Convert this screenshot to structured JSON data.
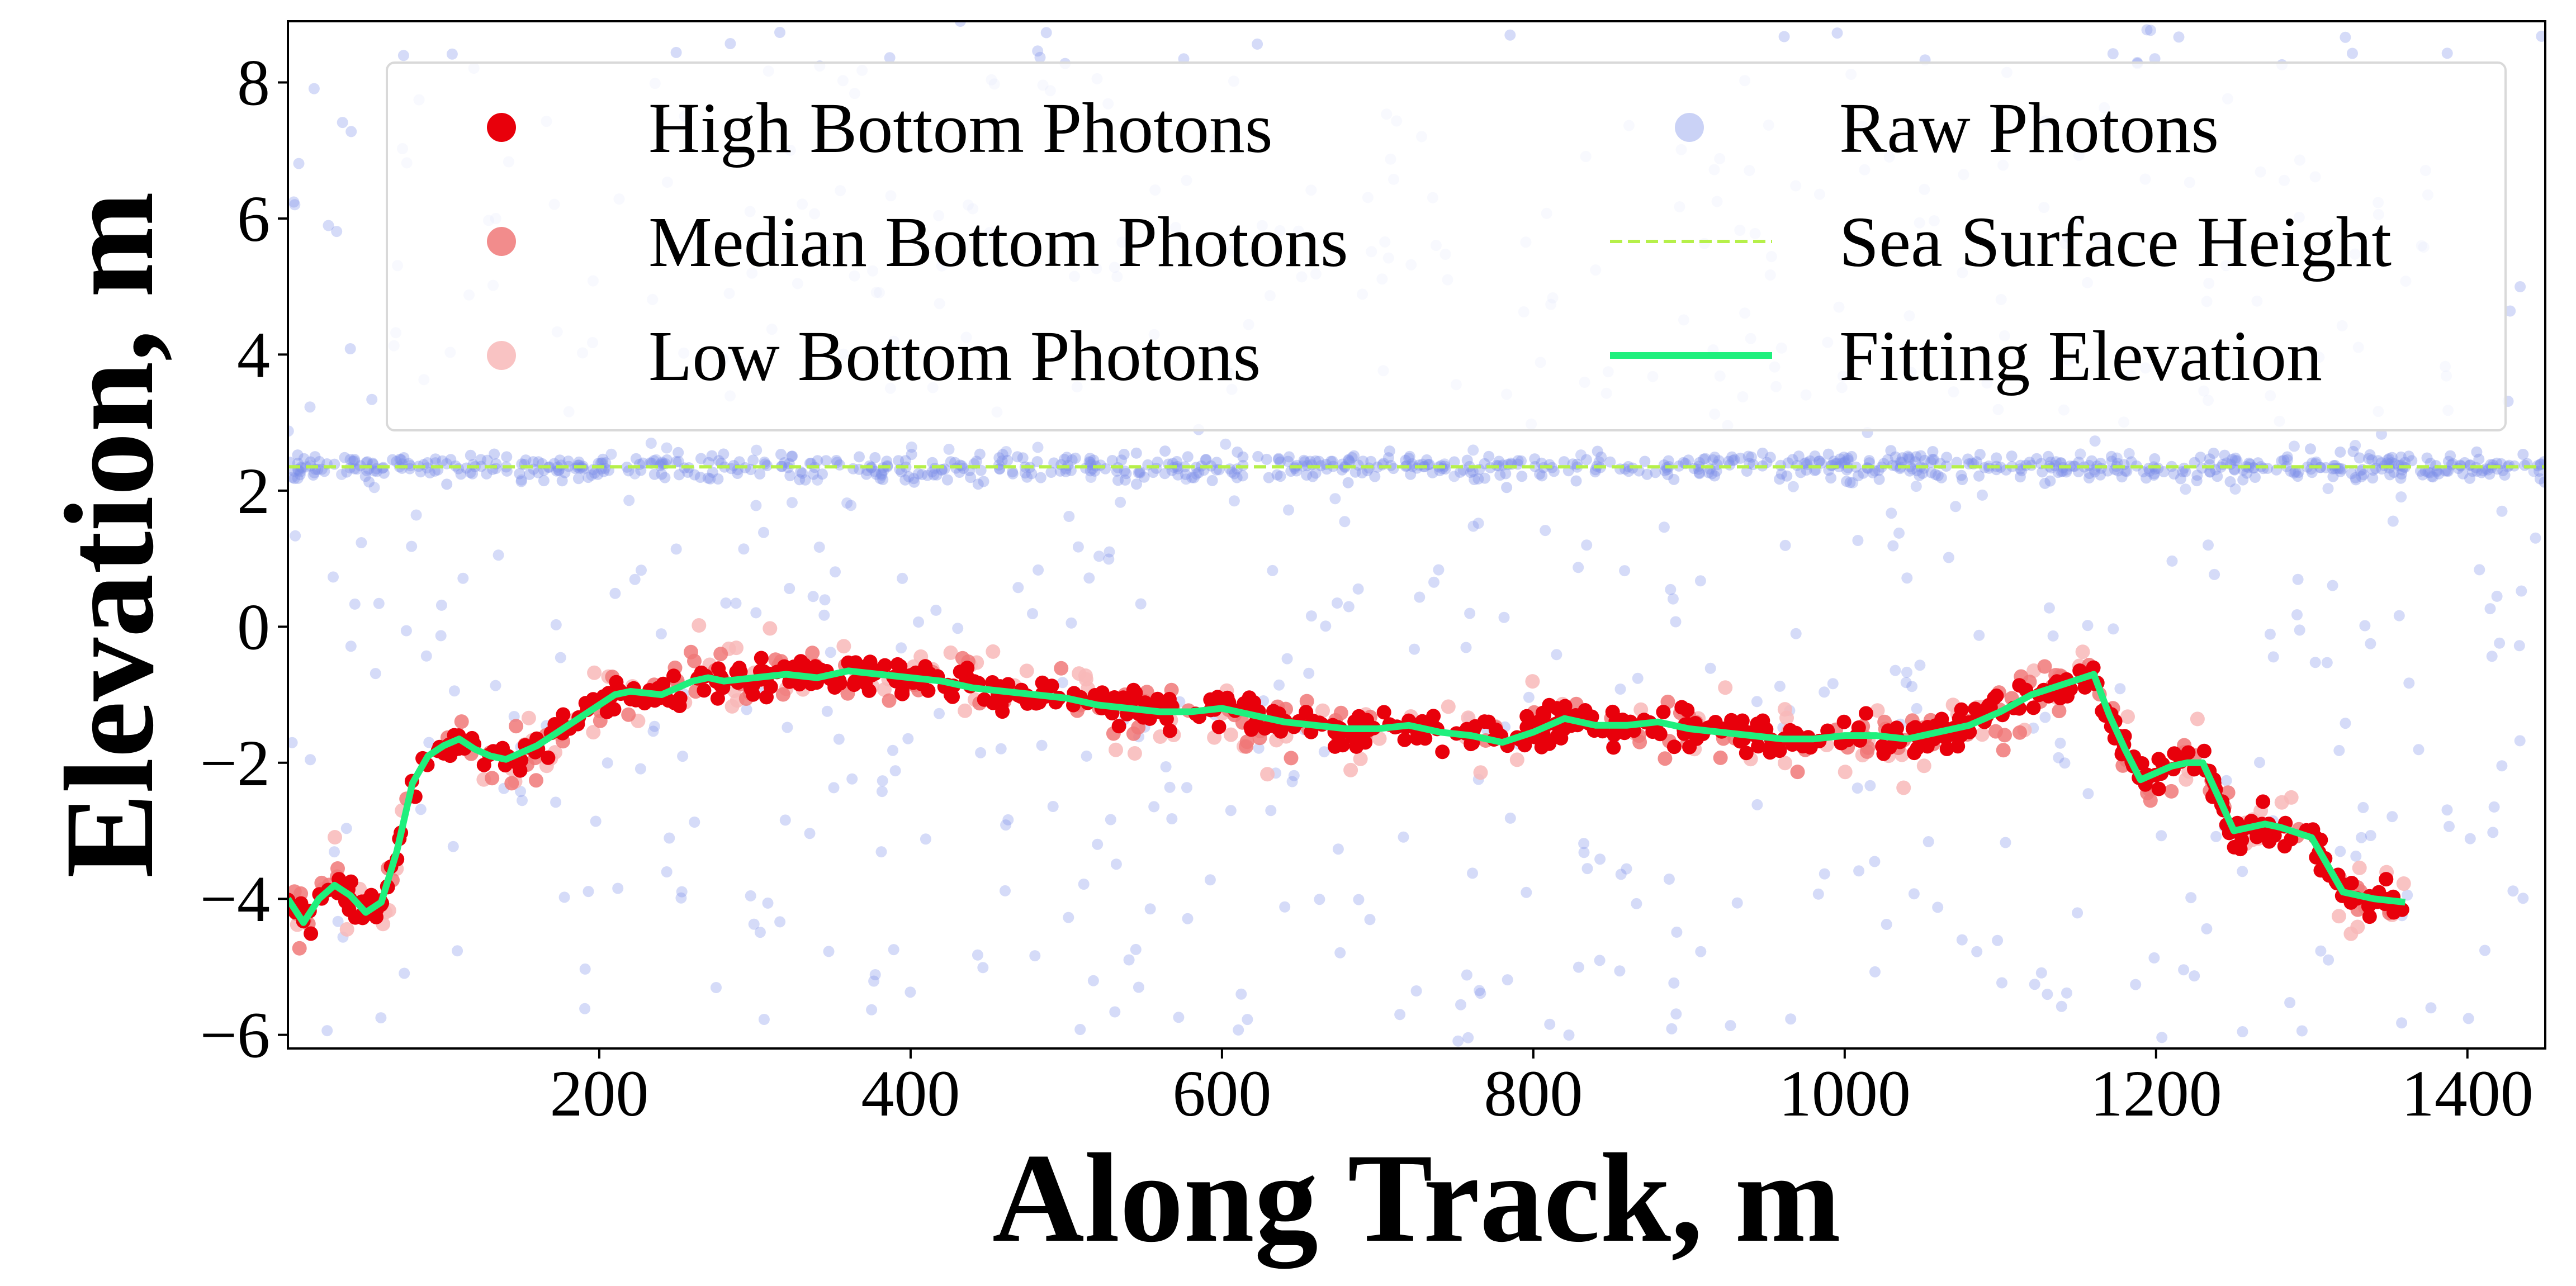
{
  "chart_data": {
    "type": "scatter",
    "title": "",
    "xlabel": "Along Track, m",
    "ylabel": "Elevation, m",
    "xlim": [
      0,
      1450
    ],
    "ylim": [
      -6.2,
      8.9
    ],
    "xticks": [
      "200",
      "400",
      "600",
      "800",
      "1000",
      "1200",
      "1400"
    ],
    "yticks": [
      "−6",
      "−4",
      "−2",
      "0",
      "2",
      "4",
      "6",
      "8"
    ],
    "grid": false,
    "legend_position": "top",
    "colors": {
      "high": "#e8000b",
      "median": "#f07878",
      "low": "#f8b8b8",
      "raw": "#7b8ee8",
      "sea_surface": "#b6f04a",
      "fitting": "#1ff07d"
    },
    "series": [
      {
        "name": "High Bottom Photons",
        "kind": "scatter",
        "color": "#e8000b"
      },
      {
        "name": "Median Bottom Photons",
        "kind": "scatter",
        "color": "#f07878"
      },
      {
        "name": "Low Bottom Photons",
        "kind": "scatter",
        "color": "#f8b8b8"
      },
      {
        "name": "Raw Photons",
        "kind": "scatter",
        "color": "#7b8ee8"
      },
      {
        "name": "Sea Surface Height",
        "kind": "line",
        "style": "dashed",
        "color": "#b6f04a",
        "y": 2.35
      },
      {
        "name": "Fitting Elevation",
        "kind": "line",
        "color": "#1ff07d",
        "x": [
          0,
          10,
          20,
          30,
          40,
          50,
          60,
          70,
          80,
          90,
          100,
          110,
          120,
          130,
          140,
          150,
          160,
          170,
          180,
          190,
          200,
          210,
          220,
          240,
          260,
          270,
          280,
          300,
          320,
          340,
          360,
          380,
          400,
          420,
          440,
          460,
          480,
          500,
          520,
          540,
          560,
          580,
          600,
          620,
          640,
          660,
          680,
          700,
          720,
          740,
          760,
          780,
          800,
          820,
          840,
          860,
          880,
          900,
          920,
          940,
          960,
          980,
          1000,
          1020,
          1040,
          1060,
          1080,
          1100,
          1120,
          1140,
          1160,
          1170,
          1180,
          1190,
          1200,
          1210,
          1220,
          1230,
          1240,
          1250,
          1260,
          1270,
          1280,
          1300,
          1320,
          1340,
          1360
        ],
        "y": [
          -4.0,
          -4.35,
          -4.0,
          -3.8,
          -3.95,
          -4.2,
          -4.05,
          -3.3,
          -2.3,
          -1.9,
          -1.75,
          -1.65,
          -1.8,
          -1.9,
          -1.95,
          -1.85,
          -1.75,
          -1.6,
          -1.45,
          -1.3,
          -1.15,
          -1.0,
          -0.95,
          -1.0,
          -0.8,
          -0.75,
          -0.8,
          -0.75,
          -0.7,
          -0.75,
          -0.65,
          -0.7,
          -0.75,
          -0.8,
          -0.9,
          -0.95,
          -1.0,
          -1.05,
          -1.15,
          -1.2,
          -1.25,
          -1.25,
          -1.2,
          -1.3,
          -1.4,
          -1.45,
          -1.5,
          -1.5,
          -1.45,
          -1.55,
          -1.6,
          -1.7,
          -1.55,
          -1.35,
          -1.45,
          -1.45,
          -1.4,
          -1.5,
          -1.55,
          -1.6,
          -1.65,
          -1.65,
          -1.6,
          -1.6,
          -1.65,
          -1.55,
          -1.45,
          -1.25,
          -1.0,
          -0.85,
          -0.7,
          -1.3,
          -1.8,
          -2.25,
          -2.15,
          -2.05,
          -2.0,
          -2.0,
          -2.5,
          -3.0,
          -2.95,
          -2.9,
          -2.95,
          -3.1,
          -3.9,
          -4.0,
          -4.05
        ]
      }
    ]
  }
}
